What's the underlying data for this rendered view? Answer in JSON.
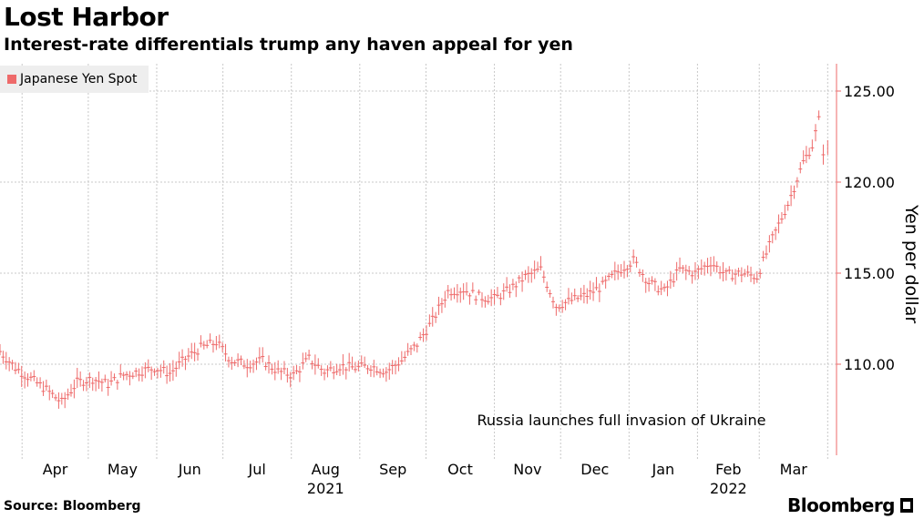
{
  "header": {
    "title": "Lost Harbor",
    "subtitle": "Interest-rate differentials trump any haven appeal for yen"
  },
  "footer": {
    "source": "Source: Bloomberg",
    "brand": "Bloomberg"
  },
  "colors": {
    "series": "#ee6a6a",
    "axis": "#ee6a6a",
    "grid": "#c8c8c8"
  },
  "chart_data": {
    "type": "line",
    "ylabel": "Yen per dollar",
    "ylim": [
      105,
      126.5
    ],
    "y_ticks": [
      110,
      115,
      120,
      125
    ],
    "y_tick_labels": [
      "110.00",
      "115.00",
      "120.00",
      "125.00"
    ],
    "grid": true,
    "legend_placement": "top-left",
    "month_labels": [
      "Apr",
      "May",
      "Jun",
      "Jul",
      "Aug",
      "Sep",
      "Oct",
      "Nov",
      "Dec",
      "Jan",
      "Feb",
      "Mar"
    ],
    "year_labels": [
      {
        "label": "2021",
        "under": "Aug"
      },
      {
        "label": "2022",
        "under": "Feb"
      }
    ],
    "annotation": "Russia launches full invasion of Ukraine",
    "series": [
      {
        "name": "Japanese Yen Spot",
        "x": [
          "2021-03-22",
          "2021-03-29",
          "2021-04-05",
          "2021-04-12",
          "2021-04-19",
          "2021-04-26",
          "2021-05-03",
          "2021-05-10",
          "2021-05-17",
          "2021-05-24",
          "2021-05-31",
          "2021-06-07",
          "2021-06-14",
          "2021-06-21",
          "2021-06-28",
          "2021-07-05",
          "2021-07-12",
          "2021-07-19",
          "2021-07-26",
          "2021-08-02",
          "2021-08-09",
          "2021-08-16",
          "2021-08-23",
          "2021-08-30",
          "2021-09-06",
          "2021-09-13",
          "2021-09-20",
          "2021-09-27",
          "2021-10-04",
          "2021-10-11",
          "2021-10-18",
          "2021-10-25",
          "2021-11-01",
          "2021-11-08",
          "2021-11-15",
          "2021-11-22",
          "2021-11-29",
          "2021-12-06",
          "2021-12-13",
          "2021-12-20",
          "2021-12-27",
          "2022-01-03",
          "2022-01-10",
          "2022-01-17",
          "2022-01-24",
          "2022-01-31",
          "2022-02-07",
          "2022-02-14",
          "2022-02-21",
          "2022-02-28",
          "2022-03-07",
          "2022-03-14",
          "2022-03-21",
          "2022-03-25",
          "2022-03-28",
          "2022-03-30",
          "2022-04-01"
        ],
        "y": [
          110.7,
          109.8,
          109.2,
          108.6,
          107.9,
          109.0,
          109.2,
          108.9,
          109.4,
          109.6,
          109.8,
          109.5,
          110.3,
          110.9,
          111.2,
          110.2,
          110.0,
          110.2,
          109.6,
          109.4,
          110.3,
          109.6,
          109.9,
          109.8,
          109.9,
          109.6,
          110.2,
          111.1,
          112.4,
          114.0,
          114.1,
          113.7,
          113.6,
          114.1,
          114.8,
          115.2,
          113.2,
          113.5,
          113.8,
          114.3,
          115.1,
          115.7,
          114.5,
          114.0,
          115.2,
          115.0,
          115.6,
          114.9,
          115.0,
          114.8,
          116.9,
          118.8,
          121.1,
          122.0,
          123.4,
          121.7,
          121.9
        ]
      }
    ]
  }
}
